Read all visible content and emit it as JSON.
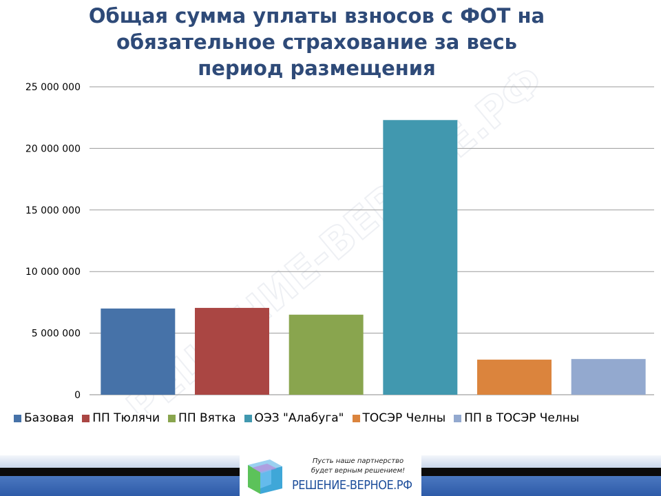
{
  "chart_data": {
    "type": "bar",
    "title_lines": [
      "Общая сумма уплаты взносов с ФОТ на",
      "обязательное страхование за весь",
      "период размещения"
    ],
    "categories": [
      "Базовая",
      "ПП Тюлячи",
      "ПП Вятка",
      "ОЭЗ \"Алабуга\"",
      "ТОСЭР Челны",
      "ПП в ТОСЭР Челны"
    ],
    "values": [
      7000000,
      7050000,
      6500000,
      22300000,
      2850000,
      2900000
    ],
    "colors": [
      "#4672a8",
      "#aa4643",
      "#89a54e",
      "#4198af",
      "#db843d",
      "#93a9cf"
    ],
    "ylim": [
      0,
      25000000
    ],
    "yticks": [
      "0",
      "5 000 000",
      "10 000 000",
      "15 000 000",
      "20 000 000",
      "25 000 000"
    ],
    "ytick_values": [
      0,
      5000000,
      10000000,
      15000000,
      20000000,
      25000000
    ],
    "grid": true,
    "legend_position": "bottom"
  },
  "watermark": "РЕШЕНИЕ-ВЕРНОЕ.РФ",
  "footer": {
    "slogan_lines": [
      "Пусть наше партнерство",
      "будет верным решением!"
    ],
    "site": "РЕШЕНИЕ-ВЕРНОЕ.РФ"
  }
}
